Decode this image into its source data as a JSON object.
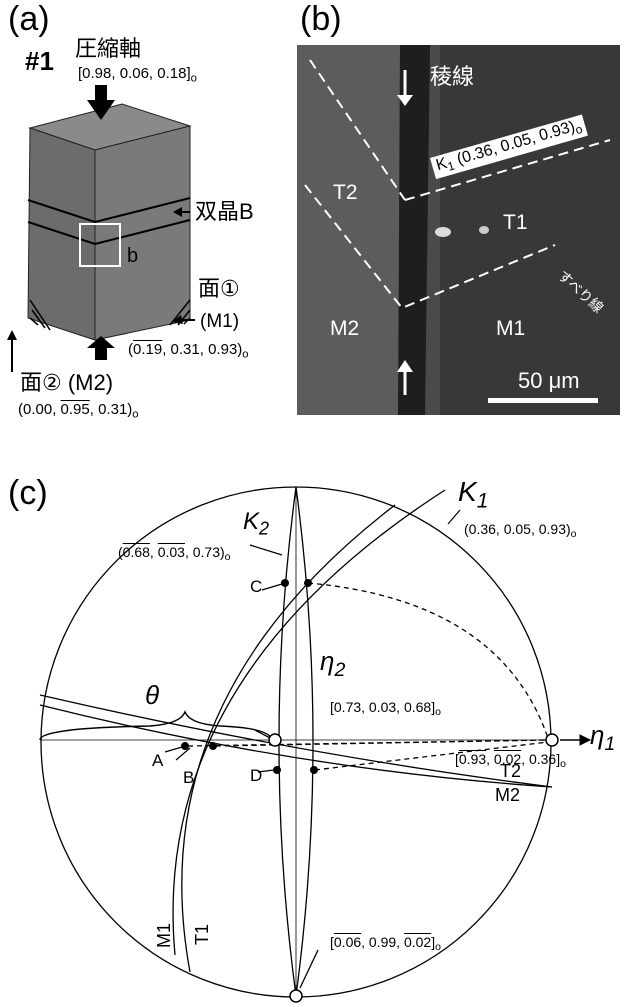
{
  "panel_a": {
    "label": "(a)",
    "sample": "#1",
    "axis_title": "圧縮軸",
    "axis_dir": {
      "open": "[",
      "idx": [
        {
          "t": "0.98"
        },
        {
          "t": "0.06"
        },
        {
          "t": "0.18"
        }
      ],
      "sep": ", ",
      "close": "]",
      "sub": "o"
    },
    "twin_label": "双晶B",
    "box_label": "b",
    "face1_label": "面①",
    "face1_name": "(M1)",
    "face1_dir": {
      "open": "(",
      "idx": [
        {
          "t": "0.19",
          "bar": true
        },
        {
          "t": "0.31"
        },
        {
          "t": "0.93"
        }
      ],
      "sep": ", ",
      "close": ")",
      "sub": "o"
    },
    "face2_label": "面② (M2)",
    "face2_dir": {
      "open": "(",
      "idx": [
        {
          "t": "0.00"
        },
        {
          "t": "0.95",
          "bar": true
        },
        {
          "t": "0.31"
        }
      ],
      "sep": ", ",
      "close": ")",
      "sub": "o"
    }
  },
  "panel_b": {
    "label": "(b)",
    "ridge": "稜線",
    "k1": "K",
    "k1_sub": "1",
    "k1_dir": {
      "open": "(",
      "idx": [
        {
          "t": "0.36"
        },
        {
          "t": "0.05"
        },
        {
          "t": "0.93"
        }
      ],
      "sep": ", ",
      "close": ")",
      "sub": "o"
    },
    "regions": [
      "T2",
      "T1",
      "M2",
      "M1"
    ],
    "slip": "すべり線",
    "scale": "50 μm"
  },
  "panel_c": {
    "label": "(c)",
    "k1": "K",
    "k1_sub": "1",
    "k1_dir": {
      "open": "(",
      "idx": [
        {
          "t": "0.36"
        },
        {
          "t": "0.05"
        },
        {
          "t": "0.93"
        }
      ],
      "sep": ", ",
      "close": ")",
      "sub": "o"
    },
    "k2": "K",
    "k2_sub": "2",
    "k2_dir": {
      "open": "(",
      "idx": [
        {
          "t": "0.68",
          "bar": true
        },
        {
          "t": "0.03",
          "bar": true
        },
        {
          "t": "0.73"
        }
      ],
      "sep": ", ",
      "close": ")",
      "sub": "o"
    },
    "eta2": "η",
    "eta2_sub": "2",
    "eta2_dir": {
      "open": "[",
      "idx": [
        {
          "t": "0.73"
        },
        {
          "t": "0.03"
        },
        {
          "t": "0.68"
        }
      ],
      "sep": ", ",
      "close": "]",
      "sub": "o"
    },
    "eta1": "η",
    "eta1_sub": "1",
    "eta1_dir": {
      "open": "[",
      "idx": [
        {
          "t": "0.93",
          "bar": true
        },
        {
          "t": "0.02",
          "bar": true
        },
        {
          "t": "0.36"
        }
      ],
      "sep": ", ",
      "close": "]",
      "sub": "o"
    },
    "bottom_dir": {
      "open": "[",
      "idx": [
        {
          "t": "0.06",
          "bar": true
        },
        {
          "t": "0.99"
        },
        {
          "t": "0.02",
          "bar": true
        }
      ],
      "sep": ", ",
      "close": "]",
      "sub": "o"
    },
    "theta": "θ",
    "points": [
      "A",
      "B",
      "C",
      "D"
    ],
    "traces": [
      "T2",
      "M2",
      "M1",
      "T1"
    ]
  }
}
